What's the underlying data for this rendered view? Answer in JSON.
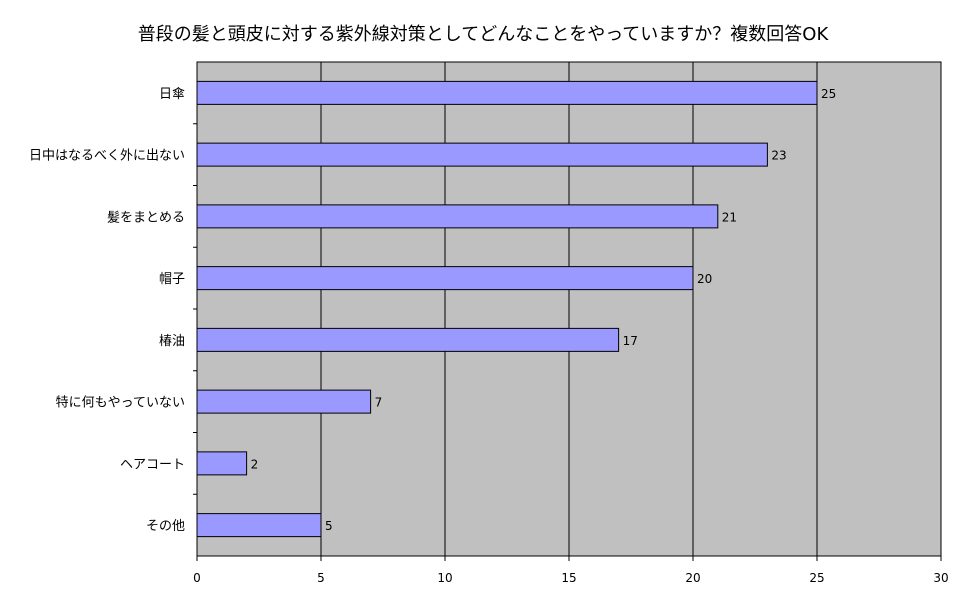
{
  "chart_data": {
    "type": "bar",
    "orientation": "horizontal",
    "title": "普段の髪と頭皮に対する紫外線対策としてどんなことをやっていますか？複数回答OK",
    "categories": [
      "日傘",
      "日中はなるべく外に出ない",
      "髪をまとめる",
      "帽子",
      "椿油",
      "特に何もやっていない",
      "ヘアコート",
      "その他"
    ],
    "values": [
      25,
      23,
      21,
      20,
      17,
      7,
      2,
      5
    ],
    "xlim": [
      0,
      30
    ],
    "xticks": [
      0,
      5,
      10,
      15,
      20,
      25,
      30
    ],
    "grid": "vertical",
    "legend": "none",
    "colors": {
      "bar": "#9999ff",
      "plot_background": "#c0c0c0",
      "grid": "#000000"
    }
  }
}
